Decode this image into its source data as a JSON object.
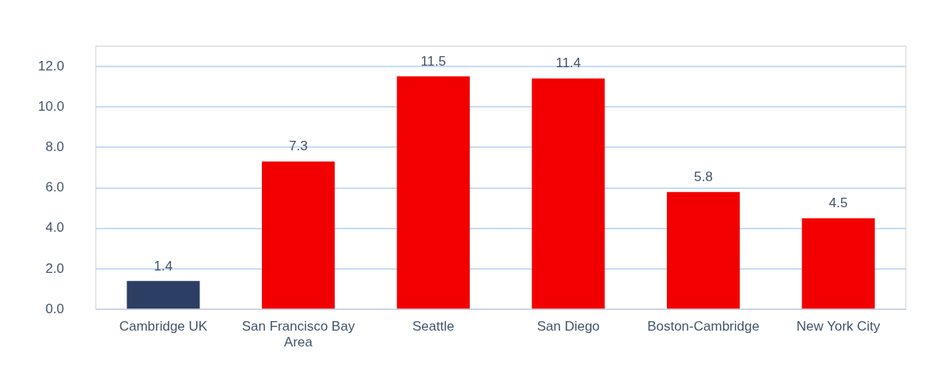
{
  "chart_data": {
    "type": "bar",
    "categories": [
      "Cambridge UK",
      "San Francisco Bay Area",
      "Seattle",
      "San Diego",
      "Boston-Cambridge",
      "New York City"
    ],
    "values": [
      1.4,
      7.3,
      11.5,
      11.4,
      5.8,
      4.5
    ],
    "colors": [
      "#2c3e64",
      "#f20000",
      "#f20000",
      "#f20000",
      "#f20000",
      "#f20000"
    ],
    "ylim": [
      0,
      13
    ],
    "yticks": [
      {
        "value": 0,
        "label": "0.0"
      },
      {
        "value": 2,
        "label": "2.0"
      },
      {
        "value": 4,
        "label": "4.0"
      },
      {
        "value": 6,
        "label": "6.0"
      },
      {
        "value": 8,
        "label": "8.0"
      },
      {
        "value": 10,
        "label": "10.0"
      },
      {
        "value": 12,
        "label": "12.0"
      }
    ],
    "grid": "y",
    "data_labels": true,
    "legend": false
  }
}
